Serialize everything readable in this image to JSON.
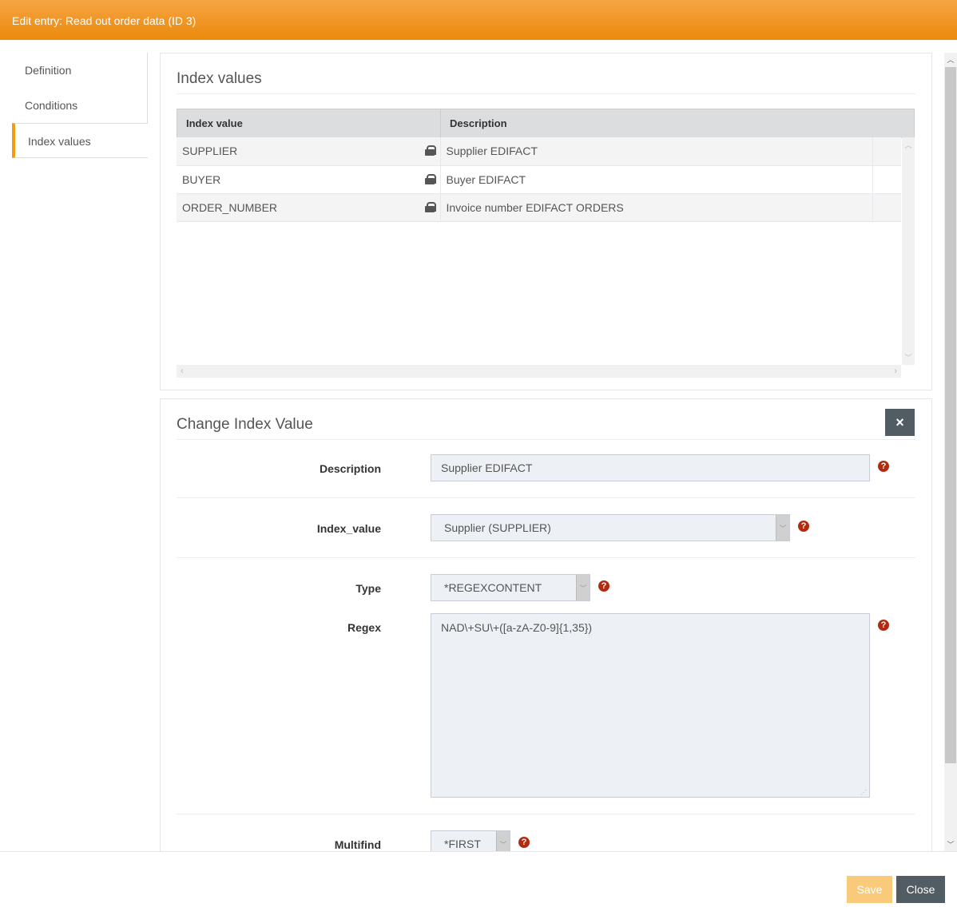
{
  "header": {
    "title": "Edit entry: Read out order data (ID 3)"
  },
  "sidebar": {
    "items": [
      {
        "label": "Definition"
      },
      {
        "label": "Conditions"
      },
      {
        "label": "Index values"
      }
    ]
  },
  "index_values": {
    "title": "Index values",
    "columns": [
      "Index value",
      "Description"
    ],
    "rows": [
      {
        "index_value": "SUPPLIER",
        "description": "Supplier EDIFACT",
        "locked": true
      },
      {
        "index_value": "BUYER",
        "description": "Buyer EDIFACT",
        "locked": true
      },
      {
        "index_value": "ORDER_NUMBER",
        "description": "Invoice number EDIFACT ORDERS",
        "locked": true
      }
    ]
  },
  "change": {
    "title": "Change Index Value",
    "close_icon": "×",
    "description_label": "Description",
    "description_value": "Supplier EDIFACT",
    "index_value_label": "Index_value",
    "index_value_selected": "Supplier (SUPPLIER)",
    "type_label": "Type",
    "type_selected": "*REGEXCONTENT",
    "regex_label": "Regex",
    "regex_value": "NAD\\+SU\\+([a-zA-Z0-9]{1,35})",
    "multifind_label": "Multifind",
    "multifind_selected": "*FIRST",
    "help_glyph": "?"
  },
  "footer": {
    "save_label": "Save",
    "close_label": "Close"
  },
  "colors": {
    "accent": "#eb8a0c",
    "save": "#f8ca7a",
    "close": "#525c63",
    "help": "#b22a10"
  }
}
